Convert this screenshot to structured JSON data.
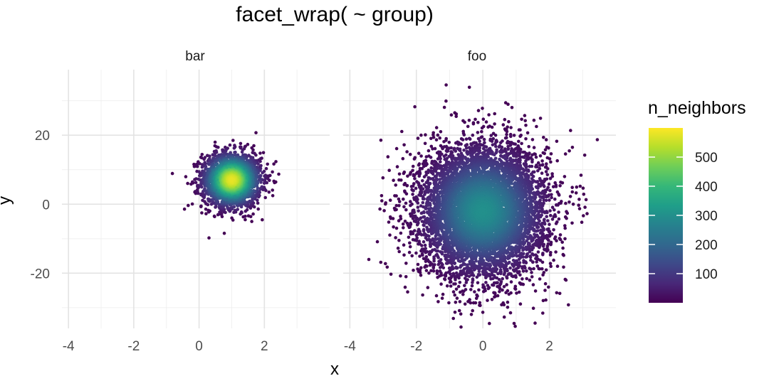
{
  "chart_data": {
    "type": "scatter",
    "title": "facet_wrap( ~ group)",
    "xlabel": "x",
    "ylabel": "y",
    "xlim": [
      -4.2,
      4.0
    ],
    "ylim": [
      -36,
      39
    ],
    "x_ticks": [
      -4,
      -2,
      0,
      2
    ],
    "x_tick_labels": [
      "-4",
      "-2",
      "0",
      "2"
    ],
    "y_ticks": [
      -20,
      0,
      20
    ],
    "y_tick_labels": [
      "-20",
      "0",
      "20"
    ],
    "grid": true,
    "facets": [
      {
        "label": "bar",
        "center": [
          1.0,
          7.0
        ],
        "spread": [
          0.45,
          4.0
        ],
        "n_points": 2200,
        "peak_neighbors": 580
      },
      {
        "label": "foo",
        "center": [
          0.0,
          -2.0
        ],
        "spread": [
          0.95,
          9.5
        ],
        "n_points": 7000,
        "peak_neighbors": 300
      }
    ],
    "colorbar": {
      "title": "n_neighbors",
      "min": 0,
      "max": 600,
      "ticks": [
        100,
        200,
        300,
        400,
        500
      ],
      "tick_labels": [
        "100",
        "200",
        "300",
        "400",
        "500"
      ],
      "palette": [
        "#440154",
        "#482878",
        "#3e4989",
        "#31688e",
        "#26828e",
        "#1f9e89",
        "#35b779",
        "#6ece58",
        "#b5de2b",
        "#fde725"
      ]
    },
    "legend_position": "right"
  }
}
